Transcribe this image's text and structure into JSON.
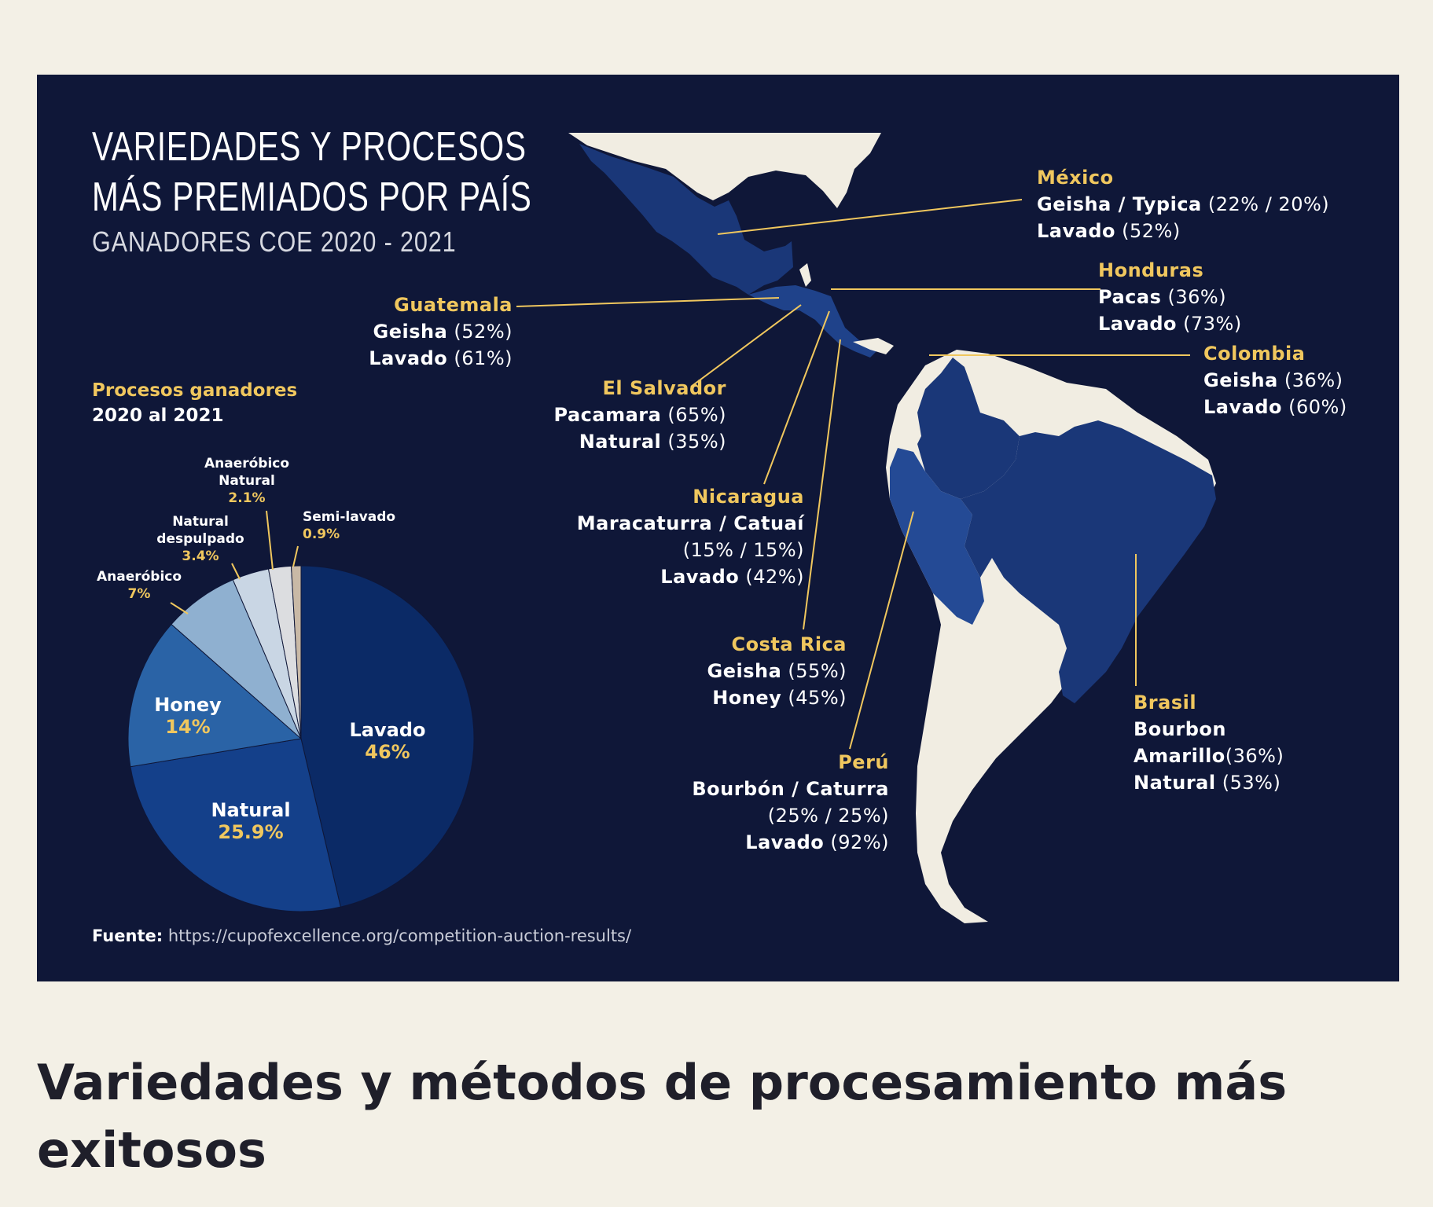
{
  "infographic": {
    "title_line1": "VARIEDADES Y PROCESOS",
    "title_line2": "MÁS PREMIADOS POR PAÍS",
    "subtitle": "GANADORES COE 2020 - 2021",
    "processes_heading_line1": "Procesos ganadores",
    "processes_heading_line2": "2020 al 2021",
    "source_label": "Fuente:",
    "source_url": "https://cupofexcellence.org/competition-auction-results/"
  },
  "chart_data": {
    "type": "pie",
    "title": "Procesos ganadores 2020 al 2021",
    "slices": [
      {
        "name": "Lavado",
        "value": 46,
        "label": "46%",
        "color": "#0b2a66"
      },
      {
        "name": "Natural",
        "value": 25.9,
        "label": "25.9%",
        "color": "#14408a"
      },
      {
        "name": "Honey",
        "value": 14,
        "label": "14%",
        "color": "#2a63a6"
      },
      {
        "name": "Anaeróbico",
        "value": 7,
        "label": "7%",
        "color": "#8fb0d0"
      },
      {
        "name": "Natural despulpado",
        "value": 3.4,
        "label": "3.4%",
        "color": "#c9d6e4"
      },
      {
        "name": "Anaeróbico Natural",
        "value": 2.1,
        "label": "2.1%",
        "color": "#dcdde0"
      },
      {
        "name": "Semi-lavado",
        "value": 0.9,
        "label": "0.9%",
        "color": "#c9b9a6"
      }
    ],
    "small_labels": {
      "anaerobico": {
        "line1": "Anaeróbico",
        "value": "7%"
      },
      "natural_despulpado": {
        "line1": "Natural",
        "line2": "despulpado",
        "value": "3.4%"
      },
      "anaerobico_natural": {
        "line1": "Anaeróbico",
        "line2": "Natural",
        "value": "2.1%"
      },
      "semi_lavado": {
        "line1": "Semi-lavado",
        "value": "0.9%"
      }
    }
  },
  "countries": {
    "mexico": {
      "name": "México",
      "var": "Geisha / Typica",
      "var_pct": " (22% / 20%)",
      "proc": "Lavado",
      "proc_pct": " (52%)"
    },
    "honduras": {
      "name": "Honduras",
      "var": "Pacas",
      "var_pct": " (36%)",
      "proc": "Lavado",
      "proc_pct": " (73%)"
    },
    "guatemala": {
      "name": "Guatemala",
      "var": "Geisha",
      "var_pct": " (52%)",
      "proc": "Lavado",
      "proc_pct": " (61%)"
    },
    "colombia": {
      "name": "Colombia",
      "var": "Geisha",
      "var_pct": " (36%)",
      "proc": "Lavado",
      "proc_pct": " (60%)"
    },
    "el_salvador": {
      "name": "El Salvador",
      "var": "Pacamara",
      "var_pct": " (65%)",
      "proc": "Natural",
      "proc_pct": " (35%)"
    },
    "nicaragua": {
      "name": "Nicaragua",
      "var": "Maracaturra / Catuaí",
      "var_pct2": "(15% / 15%)",
      "proc": "Lavado",
      "proc_pct": " (42%)"
    },
    "costa_rica": {
      "name": "Costa Rica",
      "var": "Geisha",
      "var_pct": " (55%)",
      "proc": "Honey",
      "proc_pct": " (45%)"
    },
    "brasil": {
      "name": "Brasil",
      "var": "Bourbon",
      "var2": "Amarillo",
      "var_pct": "(36%)",
      "proc": "Natural",
      "proc_pct": " (53%)"
    },
    "peru": {
      "name": "Perú",
      "var": "Bourbón / Caturra",
      "var_pct2": "(25% / 25%)",
      "proc": "Lavado",
      "proc_pct": " (92%)"
    }
  },
  "colors": {
    "background": "#0f1738",
    "accent": "#f0c75e",
    "land": "#f1ede2",
    "highlight": "#1c3a78",
    "page": "#f3f0e6"
  },
  "page": {
    "heading": "Variedades y métodos de procesamiento más exitosos"
  }
}
